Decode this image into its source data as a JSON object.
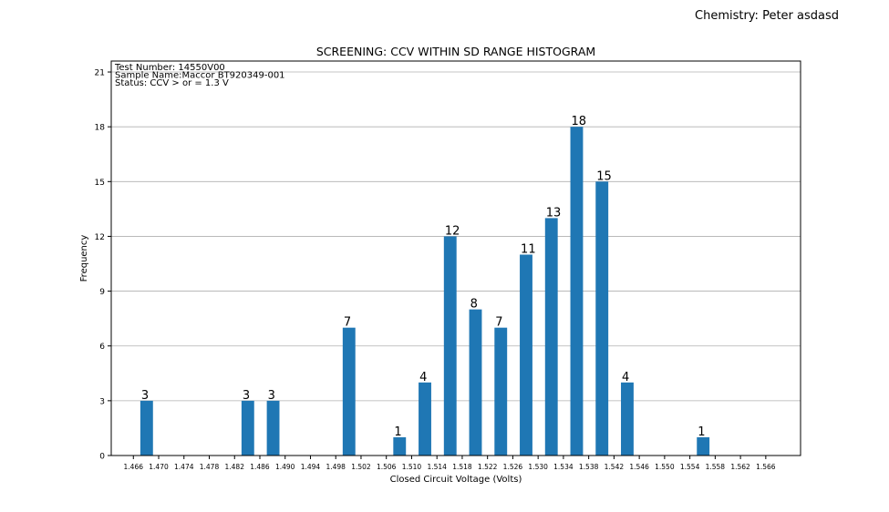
{
  "header": {
    "chemistry": "Chemistry: Peter asdasd"
  },
  "chart_data": {
    "type": "bar",
    "title": "SCREENING:  CCV WITHIN SD RANGE HISTOGRAM",
    "xlabel": "Closed Circuit Voltage (Volts)",
    "ylabel": "Frequency",
    "ylim": [
      0,
      21.6
    ],
    "yticks": [
      0,
      3,
      6,
      9,
      12,
      15,
      18,
      21
    ],
    "xlim": [
      1.4625,
      1.5715
    ],
    "xticks": [
      "1.466",
      "1.470",
      "1.474",
      "1.478",
      "1.482",
      "1.486",
      "1.490",
      "1.494",
      "1.498",
      "1.502",
      "1.506",
      "1.510",
      "1.514",
      "1.518",
      "1.522",
      "1.526",
      "1.530",
      "1.534",
      "1.538",
      "1.542",
      "1.546",
      "1.550",
      "1.554",
      "1.558",
      "1.562",
      "1.566"
    ],
    "grid": "horizontal",
    "bar_color": "#1f77b4",
    "bins": [
      {
        "x": 1.4681,
        "value": 3
      },
      {
        "x": 1.4841,
        "value": 3
      },
      {
        "x": 1.4881,
        "value": 3
      },
      {
        "x": 1.5001,
        "value": 7
      },
      {
        "x": 1.5081,
        "value": 1
      },
      {
        "x": 1.5121,
        "value": 4
      },
      {
        "x": 1.5161,
        "value": 12
      },
      {
        "x": 1.5201,
        "value": 8
      },
      {
        "x": 1.5241,
        "value": 7
      },
      {
        "x": 1.5281,
        "value": 11
      },
      {
        "x": 1.5321,
        "value": 13
      },
      {
        "x": 1.5361,
        "value": 18
      },
      {
        "x": 1.5401,
        "value": 15
      },
      {
        "x": 1.5441,
        "value": 4
      },
      {
        "x": 1.5561,
        "value": 1
      }
    ],
    "bar_width": 0.002,
    "annotations": [
      "Test Number: 14550V00",
      "Sample Name:Maccor BT920349-001",
      "Status: CCV > or = 1.3 V"
    ]
  }
}
